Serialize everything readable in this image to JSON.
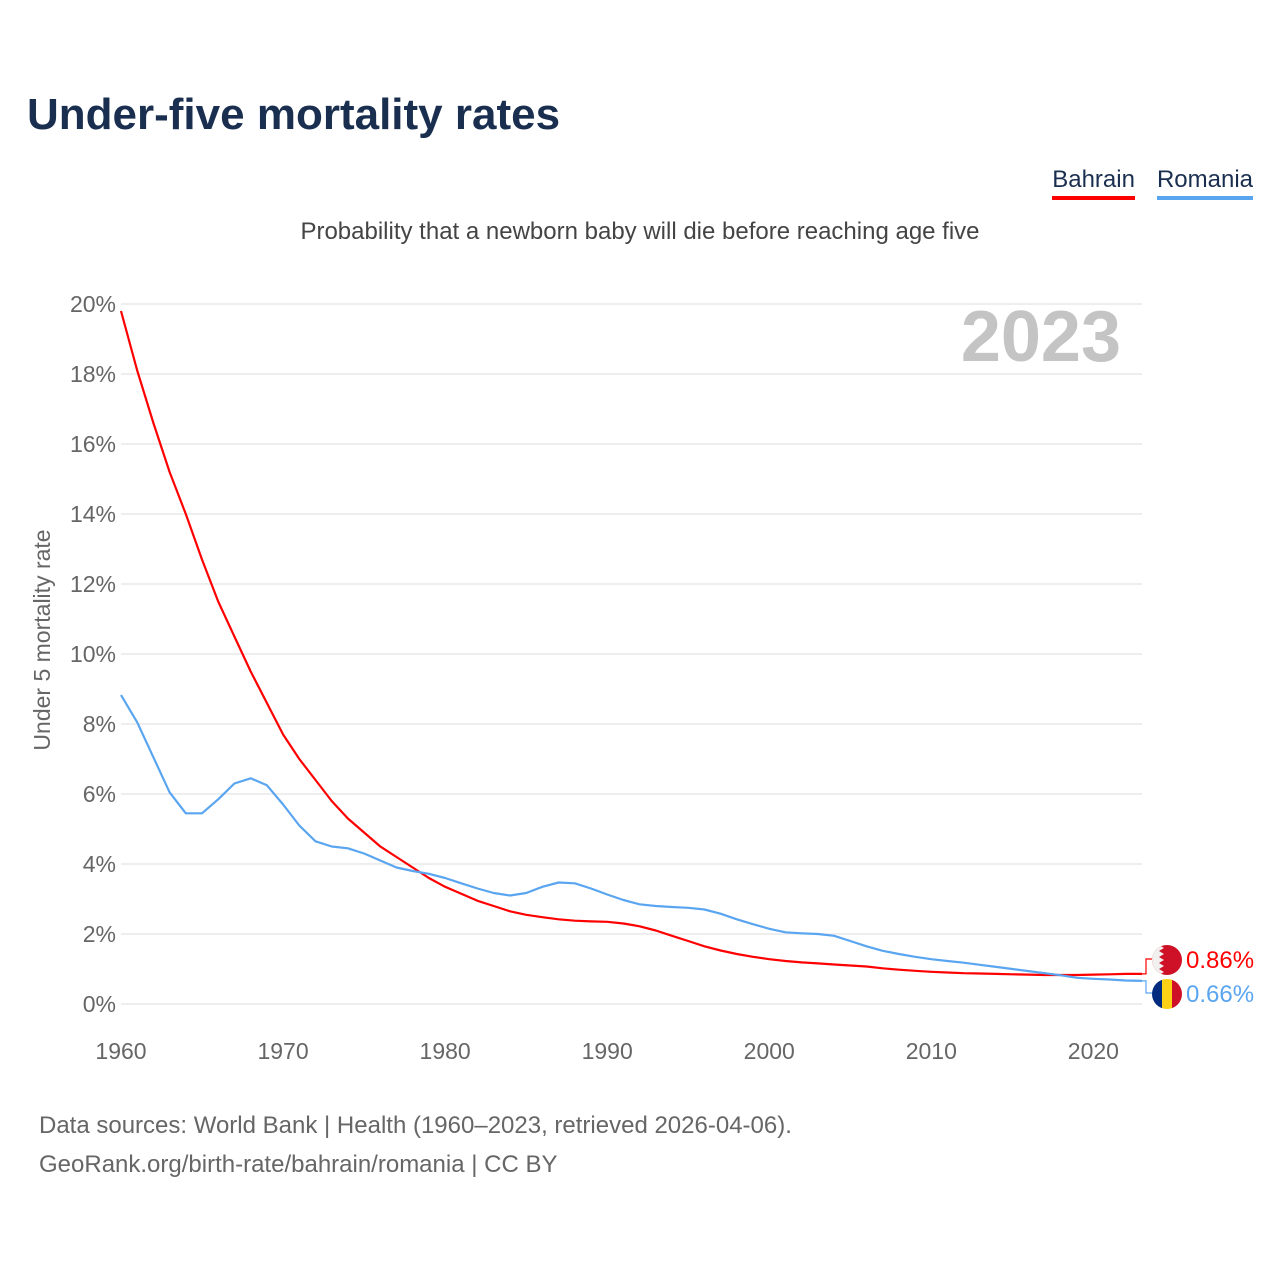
{
  "title": "Under-five mortality rates",
  "subtitle": "Probability that a newborn baby will die before reaching age five",
  "legend": [
    {
      "name": "Bahrain",
      "color": "#ff0000"
    },
    {
      "name": "Romania",
      "color": "#5aa5f0"
    }
  ],
  "year_badge": "2023",
  "footer": {
    "line1": "Data sources: World Bank | Health (1960–2023, retrieved 2026-04-06).",
    "line2": "GeoRank.org/birth-rate/bahrain/romania | CC BY"
  },
  "chart_data": {
    "type": "line",
    "title": "Under-five mortality rates",
    "xlabel": "",
    "ylabel": "Under 5 mortality rate",
    "xlim": [
      1960,
      2023
    ],
    "ylim": [
      0,
      20
    ],
    "x_ticks": [
      "1960",
      "1970",
      "1980",
      "1990",
      "2000",
      "2010",
      "2020"
    ],
    "y_ticks": [
      "0%",
      "2%",
      "4%",
      "6%",
      "8%",
      "10%",
      "12%",
      "14%",
      "16%",
      "18%",
      "20%"
    ],
    "grid": true,
    "legend_position": "top-right",
    "x_start": 1960,
    "series": [
      {
        "name": "Bahrain",
        "color": "#ff0000",
        "end_label": "0.86%",
        "values": [
          19.8,
          18.1,
          16.6,
          15.2,
          14.0,
          12.7,
          11.5,
          10.5,
          9.5,
          8.6,
          7.7,
          7.0,
          6.4,
          5.8,
          5.3,
          4.9,
          4.5,
          4.2,
          3.9,
          3.6,
          3.35,
          3.15,
          2.95,
          2.8,
          2.65,
          2.55,
          2.48,
          2.42,
          2.38,
          2.36,
          2.35,
          2.3,
          2.22,
          2.1,
          1.95,
          1.8,
          1.65,
          1.53,
          1.43,
          1.35,
          1.28,
          1.23,
          1.19,
          1.16,
          1.13,
          1.1,
          1.07,
          1.02,
          0.98,
          0.95,
          0.92,
          0.9,
          0.88,
          0.87,
          0.86,
          0.85,
          0.84,
          0.83,
          0.83,
          0.83,
          0.84,
          0.85,
          0.86,
          0.86
        ]
      },
      {
        "name": "Romania",
        "color": "#5aa5f0",
        "end_label": "0.66%",
        "values": [
          8.83,
          8.05,
          7.05,
          6.05,
          5.45,
          5.45,
          5.85,
          6.3,
          6.45,
          6.25,
          5.7,
          5.1,
          4.65,
          4.5,
          4.45,
          4.3,
          4.1,
          3.9,
          3.8,
          3.72,
          3.6,
          3.45,
          3.3,
          3.17,
          3.1,
          3.17,
          3.35,
          3.47,
          3.45,
          3.3,
          3.13,
          2.97,
          2.85,
          2.8,
          2.77,
          2.75,
          2.7,
          2.58,
          2.42,
          2.28,
          2.15,
          2.05,
          2.02,
          2.0,
          1.95,
          1.8,
          1.65,
          1.52,
          1.43,
          1.35,
          1.28,
          1.23,
          1.18,
          1.12,
          1.06,
          1.0,
          0.94,
          0.88,
          0.82,
          0.75,
          0.72,
          0.7,
          0.67,
          0.66
        ]
      }
    ]
  }
}
